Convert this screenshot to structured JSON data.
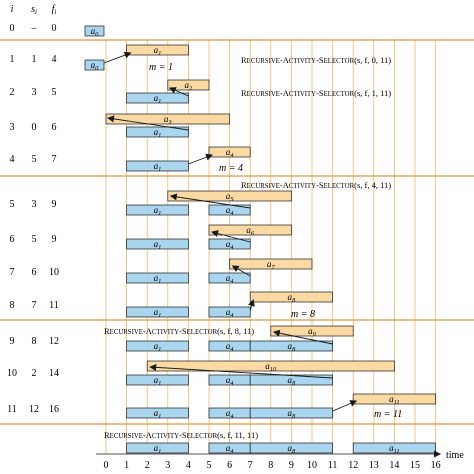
{
  "table_header": {
    "i": "i",
    "s": "s",
    "s_sub": "i",
    "f": "f",
    "f_sub": "i"
  },
  "rows": [
    {
      "i": "0",
      "s": "–",
      "f": "0"
    },
    {
      "i": "1",
      "s": "1",
      "f": "4"
    },
    {
      "i": "2",
      "s": "3",
      "f": "5"
    },
    {
      "i": "3",
      "s": "0",
      "f": "6"
    },
    {
      "i": "4",
      "s": "5",
      "f": "7"
    },
    {
      "i": "5",
      "s": "3",
      "f": "9"
    },
    {
      "i": "6",
      "s": "5",
      "f": "9"
    },
    {
      "i": "7",
      "s": "6",
      "f": "10"
    },
    {
      "i": "8",
      "s": "7",
      "f": "11"
    },
    {
      "i": "9",
      "s": "8",
      "f": "12"
    },
    {
      "i": "10",
      "s": "2",
      "f": "14"
    },
    {
      "i": "11",
      "s": "12",
      "f": "16"
    }
  ],
  "calls": [
    {
      "args": "(s, f, 0, 11)"
    },
    {
      "args": "(s, f, 1, 11)"
    },
    {
      "args": "(s, f, 4, 11)"
    },
    {
      "args": "(s, f, 8, 11)"
    },
    {
      "args": "(s, f, 11, 11)"
    }
  ],
  "call_name": {
    "R": "R",
    "rest": "ECURSIVE",
    "A": "-A",
    "rest2": "CTIVITY",
    "S": "-S",
    "rest3": "ELECTOR"
  },
  "m_notes": [
    "m = 1",
    "m = 4",
    "m = 8",
    "m = 11"
  ],
  "axis": {
    "ticks": [
      "0",
      "1",
      "2",
      "3",
      "4",
      "5",
      "6",
      "7",
      "8",
      "9",
      "10",
      "11",
      "12",
      "13",
      "14",
      "15",
      "16"
    ],
    "label": "time"
  },
  "colors": {
    "selected": "#a9d5ee",
    "candidate": "#fbd9a3",
    "grid": "#f4b860",
    "divider": "#e8973c",
    "border": "#1a1a1a"
  },
  "activity_labels": [
    "a0",
    "a1",
    "a2",
    "a3",
    "a4",
    "a5",
    "a6",
    "a7",
    "a8",
    "a9",
    "a10",
    "a11"
  ]
}
